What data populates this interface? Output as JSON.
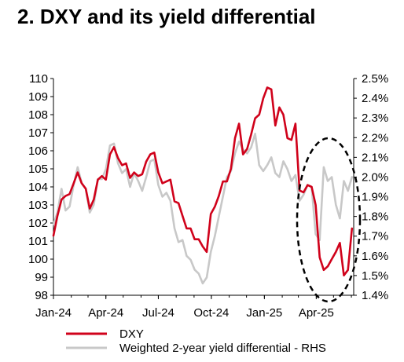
{
  "title": "2. DXY and its yield differential",
  "chart_data": {
    "type": "line",
    "title": "2. DXY and its yield differential",
    "x_tick_labels": [
      "Jan-24",
      "Apr-24",
      "Jul-24",
      "Oct-24",
      "Jan-25",
      "Apr-25"
    ],
    "x_range": [
      "2024-01-01",
      "2025-06-05"
    ],
    "y_left": {
      "ticks": [
        "110",
        "109",
        "108",
        "107",
        "106",
        "105",
        "104",
        "103",
        "102",
        "101",
        "100",
        "99",
        "98"
      ],
      "ylim": [
        98,
        110
      ]
    },
    "y_right": {
      "ticks": [
        "2.5%",
        "2.4%",
        "2.3%",
        "2.2%",
        "2.1%",
        "2.0%",
        "1.9%",
        "1.8%",
        "1.7%",
        "1.6%",
        "1.5%",
        "1.4%"
      ],
      "ylim": [
        1.4,
        2.5
      ],
      "unit": "%"
    },
    "series": [
      {
        "name": "DXY",
        "axis": "left",
        "color": "#d0021b",
        "points": [
          [
            "2024-01-01",
            101.3
          ],
          [
            "2024-01-08",
            102.4
          ],
          [
            "2024-01-15",
            103.3
          ],
          [
            "2024-01-22",
            103.5
          ],
          [
            "2024-01-29",
            103.6
          ],
          [
            "2024-02-05",
            104.2
          ],
          [
            "2024-02-12",
            104.8
          ],
          [
            "2024-02-19",
            104.2
          ],
          [
            "2024-02-26",
            103.9
          ],
          [
            "2024-03-04",
            102.8
          ],
          [
            "2024-03-11",
            103.3
          ],
          [
            "2024-03-18",
            104.4
          ],
          [
            "2024-03-25",
            104.6
          ],
          [
            "2024-04-01",
            104.4
          ],
          [
            "2024-04-08",
            105.8
          ],
          [
            "2024-04-15",
            106.2
          ],
          [
            "2024-04-22",
            105.6
          ],
          [
            "2024-04-29",
            105.2
          ],
          [
            "2024-05-06",
            105.3
          ],
          [
            "2024-05-13",
            104.5
          ],
          [
            "2024-05-20",
            104.8
          ],
          [
            "2024-05-27",
            104.6
          ],
          [
            "2024-06-03",
            104.7
          ],
          [
            "2024-06-10",
            105.4
          ],
          [
            "2024-06-17",
            105.8
          ],
          [
            "2024-06-24",
            105.9
          ],
          [
            "2024-07-01",
            104.8
          ],
          [
            "2024-07-08",
            104.2
          ],
          [
            "2024-07-15",
            104.3
          ],
          [
            "2024-07-22",
            104.4
          ],
          [
            "2024-07-29",
            103.2
          ],
          [
            "2024-08-05",
            103.1
          ],
          [
            "2024-08-12",
            102.4
          ],
          [
            "2024-08-19",
            101.7
          ],
          [
            "2024-08-26",
            101.7
          ],
          [
            "2024-09-02",
            101.1
          ],
          [
            "2024-09-09",
            101.1
          ],
          [
            "2024-09-16",
            100.7
          ],
          [
            "2024-09-23",
            100.4
          ],
          [
            "2024-09-30",
            102.5
          ],
          [
            "2024-10-07",
            102.9
          ],
          [
            "2024-10-14",
            103.5
          ],
          [
            "2024-10-21",
            104.3
          ],
          [
            "2024-10-28",
            104.3
          ],
          [
            "2024-11-04",
            105.0
          ],
          [
            "2024-11-11",
            106.7
          ],
          [
            "2024-11-18",
            107.5
          ],
          [
            "2024-11-25",
            105.8
          ],
          [
            "2024-12-02",
            106.1
          ],
          [
            "2024-12-09",
            106.9
          ],
          [
            "2024-12-16",
            107.8
          ],
          [
            "2024-12-23",
            108.0
          ],
          [
            "2024-12-30",
            108.9
          ],
          [
            "2025-01-06",
            109.5
          ],
          [
            "2025-01-13",
            109.4
          ],
          [
            "2025-01-20",
            107.4
          ],
          [
            "2025-01-27",
            108.4
          ],
          [
            "2025-02-03",
            108.0
          ],
          [
            "2025-02-10",
            106.7
          ],
          [
            "2025-02-17",
            106.6
          ],
          [
            "2025-02-24",
            107.5
          ],
          [
            "2025-03-03",
            103.8
          ],
          [
            "2025-03-10",
            103.7
          ],
          [
            "2025-03-17",
            104.1
          ],
          [
            "2025-03-24",
            104.0
          ],
          [
            "2025-03-31",
            103.0
          ],
          [
            "2025-04-07",
            100.1
          ],
          [
            "2025-04-14",
            99.4
          ],
          [
            "2025-04-21",
            99.6
          ],
          [
            "2025-04-28",
            100.0
          ],
          [
            "2025-05-05",
            100.4
          ],
          [
            "2025-05-12",
            100.9
          ],
          [
            "2025-05-19",
            99.1
          ],
          [
            "2025-05-26",
            99.4
          ],
          [
            "2025-06-02",
            101.7
          ]
        ]
      },
      {
        "name": "Weighted 2-year yield differential - RHS",
        "axis": "right",
        "color": "#c8c8c8",
        "points": [
          [
            "2024-01-01",
            1.76
          ],
          [
            "2024-01-08",
            1.82
          ],
          [
            "2024-01-15",
            1.94
          ],
          [
            "2024-01-22",
            1.83
          ],
          [
            "2024-01-29",
            1.85
          ],
          [
            "2024-02-05",
            1.96
          ],
          [
            "2024-02-12",
            2.05
          ],
          [
            "2024-02-19",
            1.97
          ],
          [
            "2024-02-26",
            1.94
          ],
          [
            "2024-03-04",
            1.82
          ],
          [
            "2024-03-11",
            1.86
          ],
          [
            "2024-03-18",
            1.99
          ],
          [
            "2024-03-25",
            1.99
          ],
          [
            "2024-04-01",
            2.04
          ],
          [
            "2024-04-08",
            2.16
          ],
          [
            "2024-04-15",
            2.17
          ],
          [
            "2024-04-22",
            2.07
          ],
          [
            "2024-04-29",
            2.02
          ],
          [
            "2024-05-06",
            2.04
          ],
          [
            "2024-05-13",
            1.95
          ],
          [
            "2024-05-20",
            2.02
          ],
          [
            "2024-05-27",
            1.98
          ],
          [
            "2024-06-03",
            1.93
          ],
          [
            "2024-06-10",
            2.0
          ],
          [
            "2024-06-17",
            2.08
          ],
          [
            "2024-06-24",
            2.09
          ],
          [
            "2024-07-01",
            1.96
          ],
          [
            "2024-07-08",
            1.9
          ],
          [
            "2024-07-15",
            1.92
          ],
          [
            "2024-07-22",
            1.88
          ],
          [
            "2024-07-29",
            1.74
          ],
          [
            "2024-08-05",
            1.67
          ],
          [
            "2024-08-12",
            1.68
          ],
          [
            "2024-08-19",
            1.6
          ],
          [
            "2024-08-26",
            1.58
          ],
          [
            "2024-09-02",
            1.53
          ],
          [
            "2024-09-09",
            1.51
          ],
          [
            "2024-09-16",
            1.46
          ],
          [
            "2024-09-23",
            1.49
          ],
          [
            "2024-09-30",
            1.62
          ],
          [
            "2024-10-07",
            1.7
          ],
          [
            "2024-10-14",
            1.8
          ],
          [
            "2024-10-21",
            1.9
          ],
          [
            "2024-10-28",
            2.0
          ],
          [
            "2024-11-04",
            2.03
          ],
          [
            "2024-11-11",
            2.12
          ],
          [
            "2024-11-18",
            2.18
          ],
          [
            "2024-11-25",
            2.14
          ],
          [
            "2024-12-02",
            2.12
          ],
          [
            "2024-12-09",
            2.15
          ],
          [
            "2024-12-16",
            2.22
          ],
          [
            "2024-12-23",
            2.06
          ],
          [
            "2024-12-30",
            2.03
          ],
          [
            "2025-01-06",
            2.06
          ],
          [
            "2025-01-13",
            2.1
          ],
          [
            "2025-01-20",
            2.02
          ],
          [
            "2025-01-27",
            2.0
          ],
          [
            "2025-02-03",
            2.08
          ],
          [
            "2025-02-10",
            2.04
          ],
          [
            "2025-02-17",
            1.98
          ],
          [
            "2025-02-24",
            2.01
          ],
          [
            "2025-03-03",
            1.88
          ],
          [
            "2025-03-10",
            1.91
          ],
          [
            "2025-03-17",
            1.96
          ],
          [
            "2025-03-24",
            1.95
          ],
          [
            "2025-03-31",
            1.71
          ],
          [
            "2025-04-07",
            1.68
          ],
          [
            "2025-04-14",
            2.05
          ],
          [
            "2025-04-21",
            1.98
          ],
          [
            "2025-04-28",
            2.0
          ],
          [
            "2025-05-05",
            1.86
          ],
          [
            "2025-05-12",
            1.79
          ],
          [
            "2025-05-19",
            1.98
          ],
          [
            "2025-05-26",
            1.93
          ],
          [
            "2025-06-02",
            2.0
          ]
        ]
      }
    ],
    "annotation": "dashed black ellipse highlighting Mar-25 to May-25 divergence",
    "legend_position": "bottom",
    "grid": false
  }
}
